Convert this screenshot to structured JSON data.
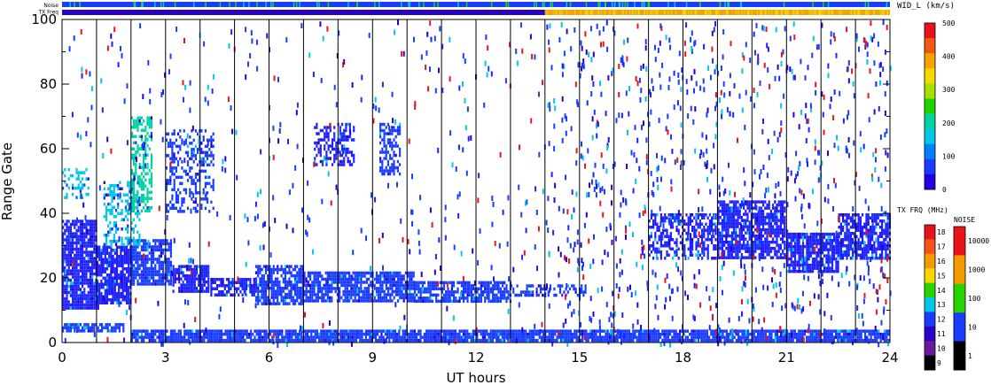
{
  "chart_data": {
    "type": "heatmap",
    "xlabel": "UT hours",
    "ylabel": "Range Gate",
    "xlim": [
      0,
      24
    ],
    "ylim": [
      0,
      100
    ],
    "x_ticks": [
      "0",
      "3",
      "6",
      "9",
      "12",
      "15",
      "18",
      "21",
      "24"
    ],
    "y_ticks": [
      "0",
      "20",
      "40",
      "60",
      "80",
      "100"
    ],
    "hour_gridlines": [
      1,
      2,
      3,
      4,
      5,
      6,
      7,
      8,
      9,
      10,
      11,
      12,
      13,
      14,
      15,
      16,
      17,
      18,
      19,
      20,
      21,
      22,
      23
    ],
    "noise_label": "Noise",
    "txfreq_label": "TX Freq",
    "txfreq_bar": {
      "segments": [
        {
          "start": 0,
          "end": 14,
          "freq_mhz": 10.9
        },
        {
          "start": 14,
          "end": 24,
          "freq_mhz": 16.0
        }
      ]
    },
    "width_scale": {
      "title": "WID_L (km/s)",
      "ticks": [
        "500",
        "400",
        "300",
        "200",
        "100",
        "0"
      ],
      "colors": [
        "#e8141a",
        "#f25a14",
        "#f5a300",
        "#f5d800",
        "#a6e000",
        "#1ed400",
        "#00d4a0",
        "#00c8e6",
        "#0080ff",
        "#1a3cff",
        "#2000e0"
      ]
    },
    "freq_scale": {
      "title": "TX FRQ (MHz)",
      "ticks": [
        "18",
        "17",
        "16",
        "15",
        "14",
        "13",
        "12",
        "11",
        "10",
        "9"
      ],
      "colors": [
        "#e8141a",
        "#f5551a",
        "#f59a00",
        "#f5d800",
        "#28d400",
        "#00c8e6",
        "#1a3cff",
        "#2a00c8",
        "#6a1a9a",
        "#000000"
      ]
    },
    "noise_scale": {
      "title": "NOISE",
      "ticks": [
        "10000",
        "1000",
        "100",
        "10",
        "1"
      ],
      "colors": [
        "#e8141a",
        "#f59a00",
        "#28d400",
        "#1a3cff",
        "#000000"
      ]
    },
    "echo_regions": [
      {
        "x0": 0.0,
        "x1": 1.0,
        "y0": 10,
        "y1": 38,
        "color": "#2020ff",
        "density": 0.85
      },
      {
        "x0": 1.0,
        "x1": 2.0,
        "y0": 12,
        "y1": 30,
        "color": "#2020ff",
        "density": 0.85
      },
      {
        "x0": 2.0,
        "x1": 3.2,
        "y0": 18,
        "y1": 32,
        "color": "#1a3cff",
        "density": 0.85
      },
      {
        "x0": 3.2,
        "x1": 4.3,
        "y0": 15,
        "y1": 24,
        "color": "#2020ff",
        "density": 0.8
      },
      {
        "x0": 4.3,
        "x1": 5.6,
        "y0": 14,
        "y1": 20,
        "color": "#2020ff",
        "density": 0.7
      },
      {
        "x0": 5.6,
        "x1": 7.0,
        "y0": 12,
        "y1": 24,
        "color": "#1a3cff",
        "density": 0.75
      },
      {
        "x0": 7.0,
        "x1": 10.2,
        "y0": 12,
        "y1": 22,
        "color": "#1a3cff",
        "density": 0.8
      },
      {
        "x0": 10.2,
        "x1": 13.0,
        "y0": 12,
        "y1": 19,
        "color": "#1a3cff",
        "density": 0.75
      },
      {
        "x0": 13.0,
        "x1": 15.2,
        "y0": 14,
        "y1": 18,
        "color": "#1a3cff",
        "density": 0.5
      },
      {
        "x0": 1.2,
        "x1": 2.3,
        "y0": 30,
        "y1": 50,
        "color": "#00c8e6",
        "density": 0.35
      },
      {
        "x0": 2.0,
        "x1": 2.6,
        "y0": 40,
        "y1": 70,
        "color": "#00d4a0",
        "density": 0.5
      },
      {
        "x0": 3.0,
        "x1": 4.4,
        "y0": 40,
        "y1": 66,
        "color": "#1a3cff",
        "density": 0.4
      },
      {
        "x0": 0.0,
        "x1": 0.8,
        "y0": 44,
        "y1": 54,
        "color": "#00c8e6",
        "density": 0.35
      },
      {
        "x0": 7.3,
        "x1": 8.5,
        "y0": 55,
        "y1": 68,
        "color": "#2020ff",
        "density": 0.45
      },
      {
        "x0": 9.2,
        "x1": 9.8,
        "y0": 52,
        "y1": 68,
        "color": "#1a3cff",
        "density": 0.55
      },
      {
        "x0": 17.0,
        "x1": 19.0,
        "y0": 26,
        "y1": 40,
        "color": "#2020ff",
        "density": 0.55
      },
      {
        "x0": 19.0,
        "x1": 21.0,
        "y0": 26,
        "y1": 44,
        "color": "#2020ff",
        "density": 0.8
      },
      {
        "x0": 21.0,
        "x1": 22.5,
        "y0": 22,
        "y1": 34,
        "color": "#2020ff",
        "density": 0.8
      },
      {
        "x0": 22.5,
        "x1": 24.0,
        "y0": 26,
        "y1": 40,
        "color": "#2020ff",
        "density": 0.7
      },
      {
        "x0": 2.0,
        "x1": 24.0,
        "y0": 0,
        "y1": 4,
        "color": "#1a3cff",
        "density": 0.9
      },
      {
        "x0": 0.0,
        "x1": 1.8,
        "y0": 3,
        "y1": 6,
        "color": "#1a3cff",
        "density": 0.7
      }
    ],
    "scatter_noise": {
      "x0": 0,
      "x1": 24,
      "y0": 0,
      "y1": 100,
      "count": 1400
    }
  }
}
